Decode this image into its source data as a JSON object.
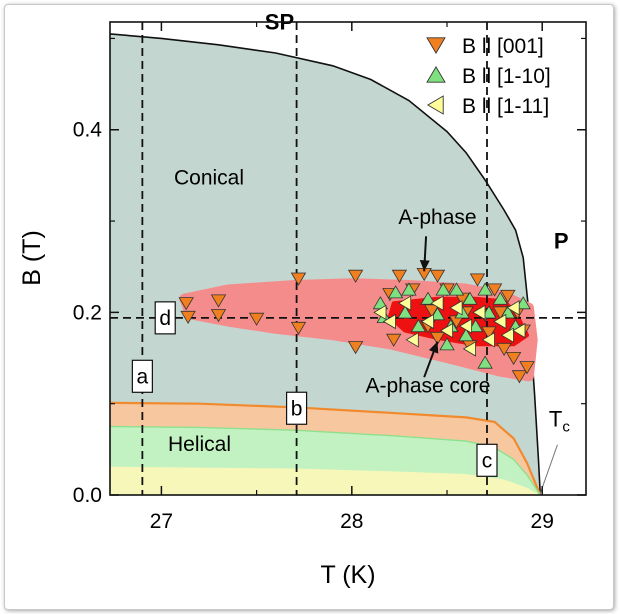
{
  "chart_data": {
    "type": "scatter",
    "title": "",
    "xlabel": "T (K)",
    "ylabel": "B (T)",
    "xlim": [
      26.73,
      29.23
    ],
    "ylim": [
      0.0,
      0.518
    ],
    "xticks": [
      {
        "v": 27,
        "label": "27"
      },
      {
        "v": 28,
        "label": "28"
      },
      {
        "v": 29,
        "label": "29"
      }
    ],
    "yticks": [
      {
        "v": 0.0,
        "label": "0.0"
      },
      {
        "v": 0.2,
        "label": "0.2"
      },
      {
        "v": 0.4,
        "label": "0.4"
      }
    ],
    "grid": false,
    "legend": "top-right",
    "region_labels": [
      {
        "text": "SP",
        "x": 27.62,
        "y": 0.51,
        "bold": true
      },
      {
        "text": "P",
        "x": 29.1,
        "y": 0.27,
        "bold": true
      },
      {
        "text": "Conical",
        "x": 27.25,
        "y": 0.34,
        "bold": false
      },
      {
        "text": "Helical",
        "x": 27.2,
        "y": 0.048,
        "bold": false
      },
      {
        "text": "A-phase",
        "x": 28.45,
        "y": 0.297,
        "bold": false
      },
      {
        "text": "A-phase core",
        "x": 28.4,
        "y": 0.112,
        "bold": false
      }
    ],
    "tc": {
      "label": "T",
      "sub": "c",
      "x": 29.09,
      "y": 0.075
    },
    "cuts": [
      {
        "label": "a",
        "x": 26.9,
        "ly": 0.13
      },
      {
        "label": "b",
        "x": 27.71,
        "ly": 0.095
      },
      {
        "label": "c",
        "x": 28.71,
        "ly": 0.038
      },
      {
        "label": "d",
        "y": 0.194,
        "lx": 27.02
      }
    ],
    "boundaries": {
      "upper": [
        [
          26.73,
          0.505
        ],
        [
          27.0,
          0.5
        ],
        [
          27.3,
          0.493
        ],
        [
          27.6,
          0.484
        ],
        [
          27.9,
          0.47
        ],
        [
          28.1,
          0.455
        ],
        [
          28.3,
          0.432
        ],
        [
          28.5,
          0.398
        ],
        [
          28.6,
          0.375
        ],
        [
          28.7,
          0.345
        ],
        [
          28.8,
          0.312
        ],
        [
          28.86,
          0.29
        ],
        [
          28.9,
          0.26
        ],
        [
          28.93,
          0.2
        ],
        [
          28.96,
          0.11
        ],
        [
          28.98,
          0.04
        ],
        [
          28.99,
          0.0
        ]
      ],
      "conical_helical": [
        [
          26.73,
          0.101
        ],
        [
          27.2,
          0.1
        ],
        [
          27.7,
          0.096
        ],
        [
          28.2,
          0.09
        ],
        [
          28.6,
          0.085
        ],
        [
          28.75,
          0.08
        ],
        [
          28.85,
          0.062
        ],
        [
          28.92,
          0.035
        ],
        [
          28.97,
          0.01
        ],
        [
          28.99,
          0.0
        ]
      ],
      "helical_upper": [
        [
          26.73,
          0.075
        ],
        [
          27.2,
          0.074
        ],
        [
          27.7,
          0.071
        ],
        [
          28.2,
          0.065
        ],
        [
          28.6,
          0.059
        ],
        [
          28.75,
          0.052
        ],
        [
          28.85,
          0.039
        ],
        [
          28.92,
          0.022
        ],
        [
          28.99,
          0.0
        ]
      ],
      "helical_lower": [
        [
          26.73,
          0.031
        ],
        [
          27.2,
          0.03
        ],
        [
          27.7,
          0.029
        ],
        [
          28.2,
          0.026
        ],
        [
          28.6,
          0.023
        ],
        [
          28.8,
          0.017
        ],
        [
          28.92,
          0.008
        ],
        [
          28.99,
          0.0
        ]
      ]
    },
    "a_phase_region": [
      [
        27.12,
        0.215
      ],
      [
        27.35,
        0.225
      ],
      [
        27.7,
        0.23
      ],
      [
        28.0,
        0.232
      ],
      [
        28.3,
        0.23
      ],
      [
        28.6,
        0.226
      ],
      [
        28.8,
        0.218
      ],
      [
        28.93,
        0.205
      ],
      [
        28.95,
        0.17
      ],
      [
        28.93,
        0.13
      ],
      [
        28.78,
        0.135
      ],
      [
        28.5,
        0.15
      ],
      [
        28.2,
        0.165
      ],
      [
        27.9,
        0.175
      ],
      [
        27.6,
        0.182
      ],
      [
        27.35,
        0.19
      ],
      [
        27.15,
        0.198
      ]
    ],
    "a_phase_core": [
      [
        28.22,
        0.21
      ],
      [
        28.45,
        0.215
      ],
      [
        28.65,
        0.215
      ],
      [
        28.8,
        0.212
      ],
      [
        28.86,
        0.2
      ],
      [
        28.92,
        0.175
      ],
      [
        28.85,
        0.165
      ],
      [
        28.65,
        0.165
      ],
      [
        28.45,
        0.172
      ],
      [
        28.28,
        0.18
      ],
      [
        28.2,
        0.195
      ]
    ],
    "series": [
      {
        "name": "B ll [001]",
        "marker": "triangle-down",
        "color": "#f07f1f",
        "points": [
          [
            27.13,
            0.21
          ],
          [
            27.14,
            0.195
          ],
          [
            27.3,
            0.197
          ],
          [
            27.3,
            0.213
          ],
          [
            27.5,
            0.193
          ],
          [
            27.72,
            0.237
          ],
          [
            27.72,
            0.183
          ],
          [
            28.02,
            0.24
          ],
          [
            28.02,
            0.162
          ],
          [
            28.2,
            0.22
          ],
          [
            28.22,
            0.17
          ],
          [
            28.25,
            0.24
          ],
          [
            28.32,
            0.225
          ],
          [
            28.38,
            0.242
          ],
          [
            28.42,
            0.202
          ],
          [
            28.45,
            0.172
          ],
          [
            28.45,
            0.24
          ],
          [
            28.5,
            0.225
          ],
          [
            28.55,
            0.19
          ],
          [
            28.58,
            0.215
          ],
          [
            28.6,
            0.2
          ],
          [
            28.62,
            0.163
          ],
          [
            28.66,
            0.236
          ],
          [
            28.7,
            0.197
          ],
          [
            28.72,
            0.178
          ],
          [
            28.75,
            0.225
          ],
          [
            28.78,
            0.2
          ],
          [
            28.8,
            0.16
          ],
          [
            28.82,
            0.218
          ],
          [
            28.85,
            0.15
          ],
          [
            28.88,
            0.13
          ],
          [
            28.9,
            0.18
          ],
          [
            28.92,
            0.14
          ],
          [
            28.87,
            0.2
          ],
          [
            28.4,
            0.185
          ]
        ]
      },
      {
        "name": "B ll [1-10]",
        "marker": "triangle-up",
        "color": "#7fe07f",
        "points": [
          [
            28.15,
            0.21
          ],
          [
            28.17,
            0.195
          ],
          [
            28.23,
            0.222
          ],
          [
            28.28,
            0.2
          ],
          [
            28.3,
            0.225
          ],
          [
            28.35,
            0.185
          ],
          [
            28.4,
            0.215
          ],
          [
            28.45,
            0.198
          ],
          [
            28.48,
            0.225
          ],
          [
            28.52,
            0.185
          ],
          [
            28.55,
            0.225
          ],
          [
            28.58,
            0.2
          ],
          [
            28.62,
            0.215
          ],
          [
            28.65,
            0.185
          ],
          [
            28.7,
            0.225
          ],
          [
            28.72,
            0.2
          ],
          [
            28.7,
            0.145
          ],
          [
            28.78,
            0.215
          ],
          [
            28.82,
            0.2
          ],
          [
            28.86,
            0.185
          ],
          [
            28.6,
            0.175
          ],
          [
            28.5,
            0.165
          ],
          [
            28.9,
            0.21
          ]
        ]
      },
      {
        "name": "B ll [1-11]",
        "marker": "triangle-left",
        "color": "#ffff99",
        "points": [
          [
            28.15,
            0.2
          ],
          [
            28.2,
            0.19
          ],
          [
            28.28,
            0.21
          ],
          [
            28.32,
            0.17
          ],
          [
            28.4,
            0.19
          ],
          [
            28.45,
            0.21
          ],
          [
            28.5,
            0.18
          ],
          [
            28.55,
            0.205
          ],
          [
            28.6,
            0.185
          ],
          [
            28.62,
            0.16
          ],
          [
            28.67,
            0.2
          ],
          [
            28.72,
            0.17
          ],
          [
            28.78,
            0.19
          ],
          [
            28.82,
            0.175
          ],
          [
            28.85,
            0.205
          ],
          [
            28.88,
            0.18
          ]
        ]
      }
    ]
  }
}
